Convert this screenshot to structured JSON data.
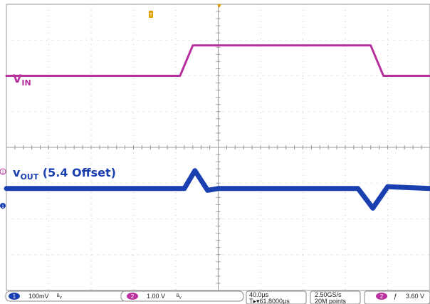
{
  "chart_data": {
    "type": "line",
    "title": "",
    "xlabel": "",
    "ylabel": "",
    "grid": true,
    "x_divisions": 10,
    "y_divisions": 8,
    "series": [
      {
        "label_main": "V",
        "label_sub": "IN",
        "label_suffix": "",
        "color": "#b8309e",
        "points_div": [
          [
            0,
            2.0
          ],
          [
            4.1,
            2.0
          ],
          [
            4.4,
            2.85
          ],
          [
            8.6,
            2.85
          ],
          [
            8.9,
            2.0
          ],
          [
            10,
            2.0
          ]
        ]
      },
      {
        "label_main": "v",
        "label_sub": "OUT",
        "label_suffix": " (5.4 Offset)",
        "color": "#1a3fb0",
        "points_div": [
          [
            0,
            -1.15
          ],
          [
            4.2,
            -1.15
          ],
          [
            4.45,
            -0.65
          ],
          [
            4.75,
            -1.2
          ],
          [
            5.0,
            -1.15
          ],
          [
            8.3,
            -1.15
          ],
          [
            8.65,
            -1.7
          ],
          [
            9.0,
            -1.1
          ],
          [
            10,
            -1.15
          ]
        ]
      }
    ]
  },
  "markers": {
    "trigger_top": "T",
    "ch2_side": "2",
    "ch1_side": "1"
  },
  "status_bar": {
    "ch1_number": "1",
    "ch1_scale": "100mV",
    "ch1_bw": "ᴮᵥ",
    "ch2_number": "2",
    "ch2_scale": "1.00 V",
    "ch2_bw": "ᴮᵥ",
    "timebase": "40.0µs",
    "trigger_pos": "T▸▾61.8000µs",
    "sample_rate": "2.50GS/s",
    "record_length": "20M points",
    "trig_channel": "2",
    "trig_slope": "ƒ",
    "trig_level": "3.60 V"
  },
  "colors": {
    "grid": "#b9b9b9",
    "ch1": "#1a3fb0",
    "ch2": "#b8309e",
    "trigger": "#e0a000"
  }
}
